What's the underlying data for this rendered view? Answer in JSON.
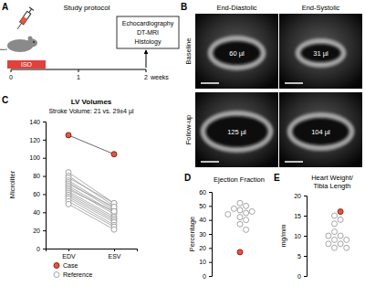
{
  "protocol": {
    "panel": "A",
    "title": "Study protocol",
    "treatment": "ISO",
    "timeline": [
      0,
      1,
      2
    ],
    "unit": "weeks",
    "endpoints": [
      "Echocardiography",
      "DT-MRI",
      "Histology"
    ]
  },
  "echo": {
    "panel": "B",
    "columns": [
      "End-Diastolic",
      "End-Systolic"
    ],
    "rows": [
      {
        "label": "Baseline",
        "volumes": [
          "60 µl",
          "31 µl"
        ]
      },
      {
        "label": "Follow-up",
        "volumes": [
          "125 µl",
          "104 µl"
        ]
      }
    ]
  },
  "chart_data": [
    {
      "panel": "C",
      "type": "line",
      "title": "LV Volumes",
      "subtitle": "Stroke Volume: 21 vs. 29±4 µl",
      "y_label": "Microliter",
      "categories": [
        "EDV",
        "ESV"
      ],
      "series": [
        {
          "name": "Case",
          "color": "#e8553e",
          "marker": "circle",
          "line_style": "solid",
          "values": [
            125,
            104
          ]
        },
        {
          "name": "Reference",
          "color": "#9a9a9a",
          "marker": "open-circle",
          "line_style": "solid",
          "values": [
            [
              84,
              50
            ],
            [
              80,
              47
            ],
            [
              78,
              50
            ],
            [
              75,
              44
            ],
            [
              73,
              42
            ],
            [
              71,
              46
            ],
            [
              69,
              40
            ],
            [
              67,
              38
            ],
            [
              65,
              41
            ],
            [
              63,
              35
            ],
            [
              61,
              33
            ],
            [
              59,
              31
            ],
            [
              57,
              29
            ],
            [
              55,
              26
            ],
            [
              52,
              24
            ],
            [
              49,
              21
            ]
          ]
        }
      ],
      "ylim": [
        0,
        140
      ],
      "yticks": [
        0,
        20,
        40,
        60,
        80,
        100,
        120,
        140
      ],
      "legend": "bottom"
    },
    {
      "panel": "D",
      "type": "dot",
      "title": "Ejection Fraction",
      "y_label": "Percentage",
      "series": [
        {
          "color": "#e8553e",
          "marker": "circle",
          "values": [
            17
          ]
        },
        {
          "color": "#9a9a9a",
          "marker": "open-circle",
          "values": [
            52,
            50,
            48,
            47,
            46,
            45,
            44,
            42,
            40,
            37,
            33
          ]
        }
      ],
      "ylim": [
        0,
        60
      ],
      "yticks": [
        0,
        10,
        20,
        30,
        40,
        50,
        60
      ],
      "tick_labels": "y"
    },
    {
      "panel": "E",
      "type": "dot",
      "title": [
        "Heart Weight/",
        "Tibia Length"
      ],
      "y_label": "mg/mm",
      "series": [
        {
          "color": "#e8553e",
          "marker": "circle",
          "values": [
            16
          ]
        },
        {
          "color": "#9a9a9a",
          "marker": "open-circle",
          "values": [
            15,
            14,
            13,
            11,
            10,
            10,
            9,
            9,
            8,
            8,
            7,
            7
          ]
        }
      ],
      "ylim": [
        0,
        20
      ],
      "yticks": [
        0,
        5,
        10,
        15,
        20
      ],
      "tick_labels": "y"
    }
  ]
}
